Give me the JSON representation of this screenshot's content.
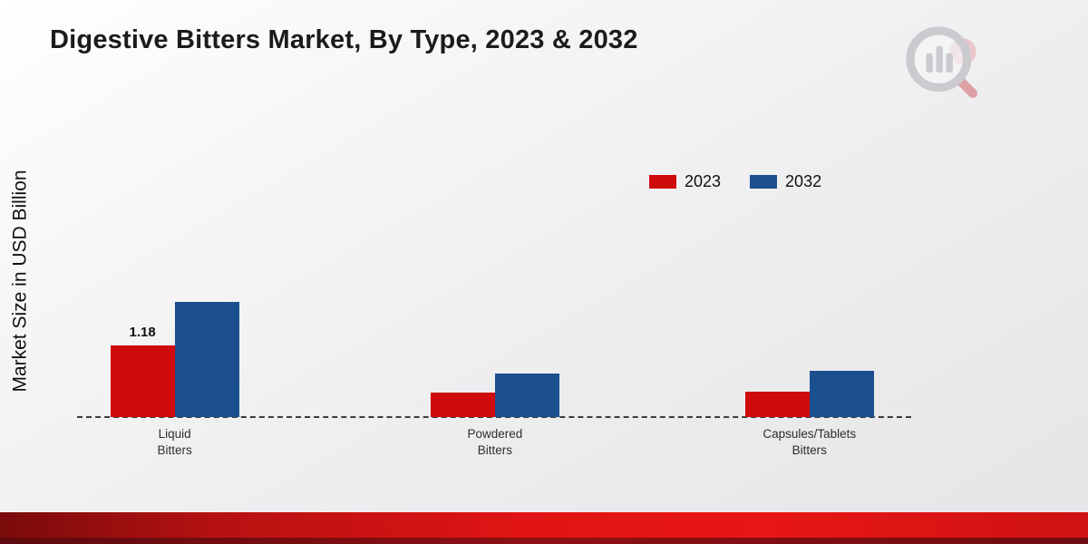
{
  "chart_data": {
    "type": "bar",
    "title": "Digestive Bitters Market, By Type, 2023 & 2032",
    "ylabel": "Market Size in USD Billion",
    "xlabel": "",
    "categories": [
      "Liquid Bitters",
      "Powdered Bitters",
      "Capsules/Tablets Bitters"
    ],
    "series": [
      {
        "name": "2023",
        "color": "#cf0a0a",
        "values": [
          1.18,
          0.4,
          0.42
        ]
      },
      {
        "name": "2032",
        "color": "#1b4f8e",
        "values": [
          1.9,
          0.72,
          0.77
        ]
      }
    ],
    "bar_labels": [
      [
        "1.18",
        "",
        ""
      ],
      [
        "",
        "",
        ""
      ]
    ],
    "ylim": [
      0,
      4.5
    ],
    "grid": false,
    "legend_position": "top-right",
    "baseline_style": "dashed"
  },
  "branding": {
    "logo": "market-research-magnifier-logo"
  },
  "colors": {
    "bar_2023": "#cf0a0a",
    "bar_2032": "#1b4f8e",
    "ribbon_red": "#d01212",
    "background": "#ececee",
    "baseline": "#3d3d3d"
  }
}
